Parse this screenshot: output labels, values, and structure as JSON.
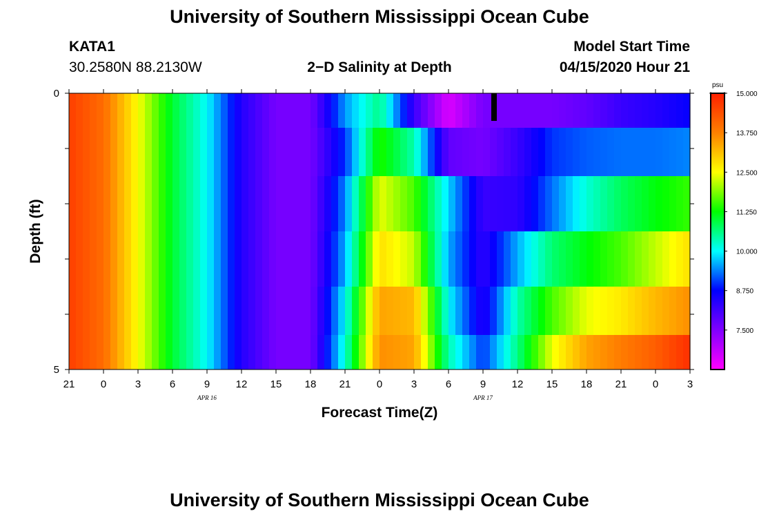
{
  "header": {
    "title": "University of Southern Mississippi Ocean Cube",
    "station_id": "KATA1",
    "station_coords": "30.2580N 88.2130W",
    "plot_title": "2−D Salinity at Depth",
    "model_start_label": "Model Start Time",
    "model_start_value": "04/15/2020 Hour 21"
  },
  "footer": {
    "title": "University of Southern Mississippi Ocean Cube"
  },
  "colors": {
    "colormap": [
      "#ff00ff",
      "#8000ff",
      "#0000ff",
      "#00ffff",
      "#00ff00",
      "#ffff00",
      "#ff8000",
      "#ff2000"
    ]
  },
  "chart_data": {
    "type": "heatmap",
    "title": "2−D Salinity at Depth",
    "xlabel": "Forecast Time(Z)",
    "ylabel": "Depth (ft)",
    "x_tick_labels": [
      "21",
      "0",
      "3",
      "6",
      "9",
      "12",
      "15",
      "18",
      "21",
      "0",
      "3",
      "6",
      "9",
      "12",
      "15",
      "18",
      "21",
      "0",
      "3"
    ],
    "x_date_labels": [
      "APR 16",
      "APR 17"
    ],
    "x_range_hours": [
      0,
      54
    ],
    "y_tick_labels": [
      "0",
      "5"
    ],
    "y_range": [
      0,
      5
    ],
    "depth_layers": [
      0.25,
      1.0,
      2.0,
      3.0,
      4.0,
      4.75
    ],
    "colorbar": {
      "unit": "psu",
      "range": [
        6.25,
        15.0
      ],
      "tick_labels": [
        "15.000",
        "13.750",
        "12.500",
        "11.250",
        "10.000",
        "8.750",
        "7.500"
      ]
    },
    "series": [
      {
        "name": "0.25",
        "values": [
          14.6,
          14.0,
          12.5,
          11.0,
          10.0,
          8.4,
          7.6,
          7.6,
          9.5,
          10.6,
          8.2,
          6.6,
          7.6,
          7.6,
          7.6,
          7.8,
          8.2,
          8.4,
          8.7
        ]
      },
      {
        "name": "1.0",
        "values": [
          14.6,
          14.0,
          12.5,
          11.0,
          10.0,
          8.4,
          7.6,
          7.6,
          9.0,
          11.4,
          10.4,
          7.8,
          7.6,
          8.2,
          9.0,
          9.2,
          9.3,
          9.3,
          9.4
        ]
      },
      {
        "name": "2.0",
        "values": [
          14.6,
          14.0,
          12.5,
          11.0,
          10.0,
          8.4,
          7.6,
          7.6,
          9.4,
          12.4,
          11.6,
          9.8,
          8.2,
          8.3,
          9.3,
          10.2,
          10.8,
          11.2,
          11.5
        ]
      },
      {
        "name": "3.0",
        "values": [
          14.6,
          14.0,
          12.5,
          11.0,
          10.0,
          8.4,
          7.6,
          7.6,
          9.6,
          12.8,
          12.2,
          9.6,
          8.3,
          9.6,
          10.7,
          11.2,
          11.6,
          12.2,
          12.8
        ]
      },
      {
        "name": "4.0",
        "values": [
          14.6,
          14.0,
          12.5,
          11.0,
          10.0,
          8.4,
          7.6,
          7.6,
          10.0,
          13.4,
          13.2,
          10.0,
          8.4,
          10.4,
          11.6,
          12.4,
          12.7,
          13.2,
          13.6
        ]
      },
      {
        "name": "4.75",
        "values": [
          14.6,
          14.0,
          12.5,
          11.0,
          10.0,
          8.4,
          7.6,
          7.6,
          10.2,
          13.6,
          13.4,
          10.4,
          9.0,
          10.6,
          12.4,
          13.4,
          13.8,
          14.2,
          14.8
        ]
      }
    ]
  }
}
